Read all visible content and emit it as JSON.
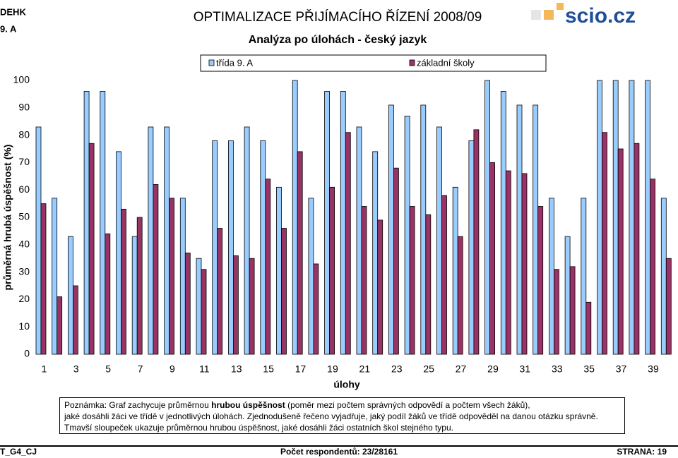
{
  "header": {
    "class_code": "DEHK",
    "class_name": "9. A",
    "title": "OPTIMALIZACE PŘIJÍMACÍHO ŘÍZENÍ 2008/09",
    "logo": "scio.cz"
  },
  "chart_data": {
    "type": "bar",
    "subtitle": "Analýza po úlohách - český jazyk",
    "y_label": "průměrná hrubá úspěšnost (%)",
    "x_label": "úlohy",
    "categories": [
      "1",
      null,
      "3",
      null,
      "5",
      null,
      "7",
      null,
      "9",
      null,
      "11",
      null,
      "13",
      null,
      "15",
      null,
      "17",
      null,
      "19",
      null,
      "21",
      null,
      "23",
      null,
      "25",
      null,
      "27",
      null,
      "29",
      null,
      "31",
      null,
      "33",
      null,
      "35",
      null,
      "37",
      null,
      "39",
      null
    ],
    "series": [
      {
        "name": "třída  9. A",
        "color": "#99ccff",
        "values": [
          83,
          57,
          43,
          96,
          96,
          74,
          43,
          83,
          83,
          57,
          35,
          78,
          78,
          83,
          78,
          61,
          100,
          57,
          96,
          96,
          83,
          74,
          91,
          87,
          91,
          83,
          61,
          78,
          100,
          96,
          91,
          91,
          57,
          43,
          57,
          100,
          100,
          100,
          100,
          57
        ]
      },
      {
        "name": "základní školy",
        "color": "#993366",
        "values": [
          55,
          21,
          25,
          77,
          44,
          53,
          50,
          62,
          57,
          37,
          31,
          46,
          36,
          35,
          64,
          46,
          74,
          33,
          61,
          81,
          54,
          49,
          68,
          54,
          51,
          58,
          43,
          82,
          70,
          67,
          66,
          54,
          31,
          32,
          19,
          81,
          75,
          77,
          64,
          35
        ]
      }
    ],
    "ylim": [
      0,
      100
    ],
    "yticks": [
      0,
      10,
      20,
      30,
      40,
      50,
      60,
      70,
      80,
      90,
      100
    ],
    "grid": false
  },
  "note": {
    "line1": [
      "Poznámka: Graf zachycuje průměrnou ",
      "hrubou úspěšnost",
      " (poměr mezi počtem správných odpovědí a počtem všech žáků),"
    ],
    "line2": "jaké dosáhli žáci ve třídě v jednotlivých úlohách. Zjednodušeně řečeno vyjadřuje, jaký podíl žáků ve třídě odpověděl na danou otázku správně.",
    "line3": "Tmavší sloupeček ukazuje průměrnou hrubou úspěšnost, jaké dosáhli žáci ostatních škol stejného typu."
  },
  "footer": {
    "code": "T_G4_CJ",
    "respondents": "Počet respondentů: 23/28161",
    "page": "STRANA: 19"
  }
}
